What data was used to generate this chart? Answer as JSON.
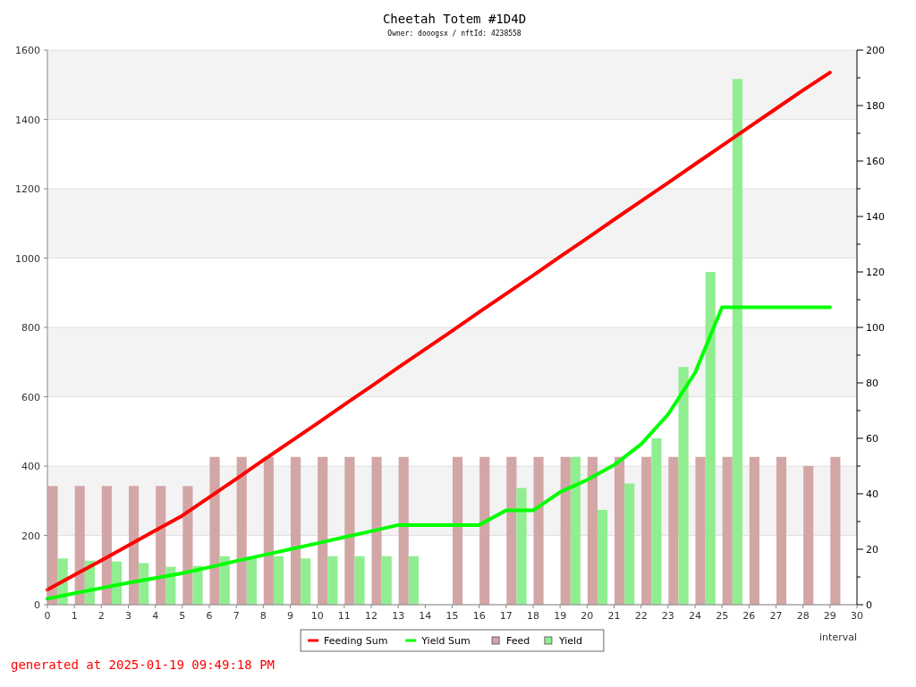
{
  "chart_data": {
    "type": "line",
    "title": "Cheetah Totem #1D4D",
    "subtitle": "Owner: dooogsx / nftId: 4238558",
    "xlabel": "interval",
    "x": [
      0,
      1,
      2,
      3,
      4,
      5,
      6,
      7,
      8,
      9,
      10,
      11,
      12,
      13,
      14,
      15,
      16,
      17,
      18,
      19,
      20,
      21,
      22,
      23,
      24,
      25,
      26,
      27,
      28,
      29
    ],
    "xlim": [
      0,
      30
    ],
    "xticks": [
      0,
      1,
      2,
      3,
      4,
      5,
      6,
      7,
      8,
      9,
      10,
      11,
      12,
      13,
      14,
      15,
      16,
      17,
      18,
      19,
      20,
      21,
      22,
      23,
      24,
      25,
      26,
      27,
      28,
      29,
      30
    ],
    "ylim": [
      0,
      1600
    ],
    "yticks": [
      0,
      200,
      400,
      600,
      800,
      1000,
      1200,
      1400,
      1600
    ],
    "y2lim": [
      0,
      200
    ],
    "y2ticks": [
      0,
      {
        "value": 10,
        "label": null
      },
      20,
      {
        "value": 30,
        "label": null
      },
      40,
      {
        "value": 50,
        "label": null
      },
      60,
      {
        "value": 70,
        "label": null
      },
      80,
      {
        "value": 90,
        "label": null
      },
      100,
      {
        "value": 110,
        "label": null
      },
      120,
      {
        "value": 130,
        "label": null
      },
      140,
      {
        "value": 150,
        "label": null
      },
      160,
      {
        "value": 170,
        "label": null
      },
      180,
      {
        "value": 190,
        "label": null
      },
      200
    ],
    "grid": "y",
    "legend": "bottom",
    "marker": "none",
    "line_style": "solid",
    "series": [
      {
        "name": "Feeding Sum",
        "color": "#ff0000",
        "values": [
          43,
          86,
          128,
          171,
          214,
          257,
          310,
          363,
          417,
          470,
          523,
          577,
          630,
          684,
          737,
          790,
          844,
          897,
          950,
          1004,
          1057,
          1111,
          1164,
          1217,
          1271,
          1324,
          1378,
          1431,
          1484,
          1535
        ]
      },
      {
        "name": "Yield Sum",
        "color": "#00ff00",
        "values": [
          17,
          33,
          48,
          63,
          77,
          91,
          108,
          126,
          143,
          160,
          177,
          195,
          212,
          230,
          230,
          230,
          230,
          272,
          272,
          325,
          360,
          403,
          463,
          549,
          669,
          858,
          858,
          858,
          858,
          858
        ]
      },
      {
        "name": "Feed",
        "type": "bar",
        "axis": "y2",
        "x": [
          0.2,
          1.2,
          2.2,
          3.2,
          4.2,
          5.2,
          6.2,
          7.2,
          8.2,
          9.2,
          10.2,
          11.2,
          12.2,
          13.2,
          null,
          15.2,
          16.2,
          17.2,
          18.2,
          19.2,
          20.2,
          21.2,
          22.2,
          23.2,
          24.2,
          25.2,
          26.2,
          27.2,
          28.2,
          29.2
        ],
        "color": "#d3a6a6",
        "values": [
          42.8,
          42.8,
          42.8,
          42.8,
          42.8,
          42.8,
          53.3,
          53.3,
          53.3,
          53.3,
          53.3,
          53.3,
          53.3,
          53.3,
          null,
          53.3,
          53.3,
          53.3,
          53.3,
          53.3,
          53.3,
          53.3,
          53.3,
          53.3,
          53.3,
          53.3,
          53.3,
          53.3,
          50,
          53.3
        ]
      },
      {
        "name": "Yield",
        "type": "bar",
        "axis": "y2",
        "x": [
          0.57,
          1.57,
          2.57,
          3.57,
          4.57,
          5.57,
          6.57,
          7.57,
          8.57,
          9.57,
          10.57,
          11.57,
          12.57,
          13.57,
          null,
          null,
          null,
          17.57,
          null,
          19.57,
          20.57,
          21.57,
          22.57,
          23.57,
          24.57,
          25.57,
          null,
          null,
          null,
          null
        ],
        "color": "#90ee90",
        "values": [
          16.7,
          15.9,
          15.6,
          15,
          13.7,
          14,
          17.5,
          17.3,
          17.5,
          16.7,
          17.5,
          17.5,
          17.5,
          17.5,
          null,
          null,
          null,
          42.1,
          null,
          53.3,
          34.2,
          43.7,
          60,
          85.7,
          120,
          189.6,
          null,
          null,
          null,
          null
        ]
      }
    ],
    "annotations": [
      "generated at 2025-01-19 09:49:18 PM"
    ]
  }
}
